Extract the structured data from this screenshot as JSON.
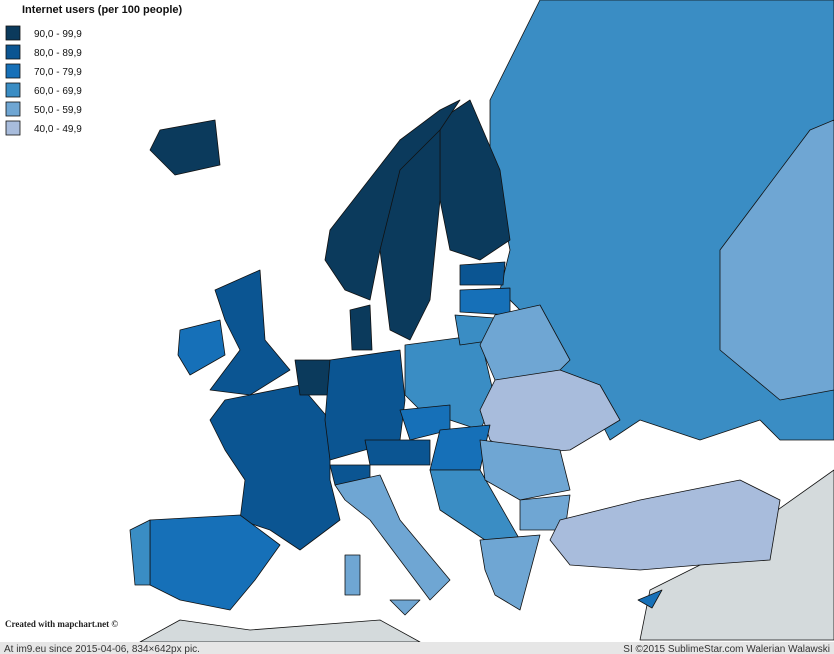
{
  "legend": {
    "title": "Internet users (per 100 people)",
    "items": [
      {
        "label": "90,0 - 99,9",
        "color": "#0b3a5c"
      },
      {
        "label": "80,0 - 89,9",
        "color": "#0b5592"
      },
      {
        "label": "70,0 - 79,9",
        "color": "#1670b8"
      },
      {
        "label": "60,0 - 69,9",
        "color": "#3a8dc4"
      },
      {
        "label": "50,0 - 59,9",
        "color": "#6fa6d3"
      },
      {
        "label": "40,0 - 49,9",
        "color": "#a8bcdc"
      }
    ]
  },
  "credit": "Created with mapchart.net ©",
  "footer": {
    "left": "At im9.eu since 2015-04-06, 834×642px pic.",
    "right": "SI ©2015 SublimeStar.com Walerian Walawski"
  }
}
